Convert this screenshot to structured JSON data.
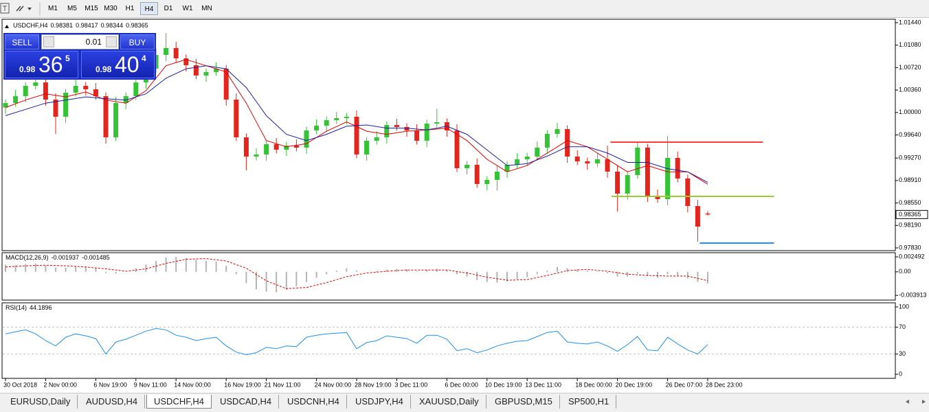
{
  "toolbar": {
    "timeframes": [
      "M1",
      "M5",
      "M15",
      "M30",
      "H1",
      "H4",
      "D1",
      "W1",
      "MN"
    ],
    "active": 5
  },
  "trade_panel": {
    "sell": "SELL",
    "buy": "BUY",
    "lot": "0.01",
    "bid": {
      "big": "0.98",
      "main": "36",
      "pip": "5"
    },
    "ask": {
      "big": "0.98",
      "main": "40",
      "pip": "4"
    }
  },
  "tabs": {
    "items": [
      "EURUSD,Daily",
      "AUDUSD,H4",
      "USDCHF,H4",
      "USDCAD,H4",
      "USDCNH,H4",
      "USDJPY,H4",
      "XAUUSD,Daily",
      "GBPUSD,M15",
      "SP500,H1"
    ],
    "active": 2
  },
  "chart_data": [
    {
      "type": "candlestick",
      "title": "USDCHF,H4",
      "categories": [
        "30 Oct 2018",
        null,
        null,
        null,
        "2 Nov 00:00",
        null,
        null,
        null,
        null,
        "6 Nov 19:00",
        null,
        null,
        null,
        "9 Nov 11:00",
        null,
        null,
        null,
        "14 Nov 00:00",
        null,
        null,
        null,
        null,
        "16 Nov 19:00",
        null,
        null,
        null,
        "21 Nov 11:00",
        null,
        null,
        null,
        null,
        "24 Nov 00:00",
        null,
        null,
        null,
        "28 Nov 19:00",
        null,
        null,
        null,
        "3 Dec 11:00",
        null,
        null,
        null,
        null,
        "6 Dec 00:00",
        null,
        null,
        null,
        "10 Dec 19:00",
        null,
        null,
        null,
        "13 Dec 11:00",
        null,
        null,
        null,
        null,
        "18 Dec 00:00",
        null,
        null,
        null,
        "20 Dec 19:00",
        null,
        null,
        null,
        null,
        "26 Dec 07:00",
        null,
        null,
        null,
        "28 Dec 23:00"
      ],
      "open": [
        1.0008,
        1.00152,
        1.00262,
        1.00427,
        1.00482,
        1.00207,
        0.99932,
        1.00317,
        1.00427,
        1.00372,
        1.00262,
        0.99602,
        1.00152,
        1.00262,
        1.00482,
        1.00703,
        1.00923,
        1.01033,
        1.00868,
        1.00758,
        1.00593,
        1.00648,
        1.00703,
        1.00207,
        0.99602,
        0.99294,
        0.99327,
        0.99492,
        0.99404,
        0.9947,
        0.99437,
        0.99712,
        0.99789,
        0.99877,
        0.9991,
        0.99932,
        0.99327,
        0.99547,
        0.99602,
        0.998,
        0.99767,
        0.99712,
        0.99547,
        0.99822,
        0.99844,
        0.99712,
        0.99107,
        0.99162,
        0.98854,
        0.9892,
        0.99052,
        0.99162,
        0.9925,
        0.99294,
        0.99437,
        0.99657,
        0.99734,
        0.99294,
        0.99217,
        0.99184,
        0.9925,
        0.99052,
        0.987,
        0.98997,
        0.99437,
        0.98667,
        0.98612,
        0.99272,
        0.98942,
        0.98501,
        0.98381
      ],
      "high": [
        1.00212,
        1.00362,
        1.00487,
        1.00582,
        1.00542,
        1.00307,
        1.00377,
        1.00527,
        1.00487,
        1.00472,
        1.00322,
        1.00252,
        1.00322,
        1.00582,
        1.00763,
        1.01023,
        1.01275,
        1.01133,
        1.00928,
        1.00858,
        1.00708,
        1.00803,
        1.00763,
        1.00307,
        0.99662,
        0.99427,
        0.99552,
        0.99592,
        0.9953,
        0.9957,
        0.99772,
        0.99889,
        0.99937,
        1.0001,
        0.99992,
        1.00032,
        0.99607,
        0.99702,
        0.9986,
        0.999,
        0.99827,
        0.99812,
        0.99882,
        1.0006,
        0.99904,
        0.99812,
        0.99222,
        0.99262,
        0.9898,
        0.99152,
        0.99222,
        0.9935,
        0.99354,
        0.99537,
        0.99717,
        0.99834,
        0.99794,
        0.99394,
        0.99277,
        0.9935,
        0.9947,
        0.99152,
        0.99057,
        0.99537,
        0.99497,
        0.98767,
        0.99624,
        0.99372,
        0.99002,
        0.98601,
        0.98417
      ],
      "low": [
        0.9998,
        1.00092,
        1.00162,
        1.00367,
        1.00107,
        0.99657,
        0.99832,
        1.00257,
        1.00272,
        1.00202,
        0.99502,
        0.99542,
        1.00052,
        1.00202,
        1.00382,
        1.00643,
        1.00823,
        1.00808,
        1.00658,
        1.00533,
        1.00493,
        1.00588,
        1.00107,
        0.99542,
        0.99074,
        0.99234,
        0.99227,
        0.99344,
        0.99304,
        0.99377,
        0.99337,
        0.99652,
        0.99689,
        0.99817,
        0.9981,
        0.99267,
        0.99227,
        0.99487,
        0.99502,
        0.99707,
        0.99612,
        0.99487,
        0.99447,
        0.99762,
        0.99612,
        0.99047,
        0.99007,
        0.98794,
        0.98754,
        0.9875,
        0.98952,
        0.99102,
        0.9915,
        0.99234,
        0.99337,
        0.99597,
        0.99194,
        0.99157,
        0.99084,
        0.99124,
        0.98952,
        0.98413,
        0.986,
        0.98937,
        0.98567,
        0.98552,
        0.98512,
        0.98882,
        0.98401,
        0.97929,
        0.98344
      ],
      "close": [
        1.00152,
        1.00262,
        1.00427,
        1.00482,
        1.00207,
        0.99932,
        1.00317,
        1.00427,
        1.00372,
        1.00262,
        0.99602,
        1.00152,
        1.00262,
        1.00482,
        1.00703,
        1.00923,
        1.01033,
        1.00868,
        1.00758,
        1.00593,
        1.00648,
        1.00703,
        1.00207,
        0.99602,
        0.99294,
        0.99327,
        0.99492,
        0.99404,
        0.9947,
        0.99437,
        0.99712,
        0.99789,
        0.99877,
        0.9991,
        0.99932,
        0.99327,
        0.99547,
        0.99602,
        0.998,
        0.99767,
        0.99712,
        0.99547,
        0.99822,
        0.99844,
        0.99712,
        0.99107,
        0.99162,
        0.98854,
        0.9892,
        0.99052,
        0.99162,
        0.9925,
        0.99294,
        0.99437,
        0.99657,
        0.99734,
        0.99294,
        0.99217,
        0.99184,
        0.9925,
        0.99052,
        0.987,
        0.98997,
        0.99437,
        0.98667,
        0.98612,
        0.99272,
        0.98942,
        0.98501,
        0.98171,
        0.98365
      ],
      "up_color": "#36c236",
      "down_color": "#e3261d",
      "lines": [
        {
          "color": "#e00000",
          "values": [
            1.0008,
            1.002,
            1.003,
            1.0025,
            1.0033,
            1.002,
            1.0015,
            1.0035,
            1.0075,
            1.0085,
            1.0075,
            1.0065,
            1.0015,
            0.9955,
            0.9945,
            0.995,
            0.997,
            0.9985,
            0.997,
            0.9965,
            0.997,
            0.9972,
            0.9975,
            0.9955,
            0.9925,
            0.9905,
            0.9915,
            0.9935,
            0.9955,
            0.9945,
            0.9925,
            0.9905,
            0.9915,
            0.9905,
            0.9905,
            0.9885
          ]
        },
        {
          "color": "#1c1ca0",
          "values": [
            0.9995,
            1.0005,
            1.0015,
            1.002,
            1.0025,
            1.0022,
            1.002,
            1.003,
            1.0055,
            1.007,
            1.0075,
            1.007,
            1.004,
            0.9995,
            0.9965,
            0.9955,
            0.9965,
            0.9978,
            0.998,
            0.9975,
            0.9975,
            0.9972,
            0.9978,
            0.9965,
            0.994,
            0.9915,
            0.9918,
            0.993,
            0.9945,
            0.9945,
            0.9935,
            0.992,
            0.992,
            0.991,
            0.9905,
            0.9888
          ]
        }
      ],
      "hlines": [
        {
          "value": 0.99525,
          "color": "#ff3a3a",
          "from": 60.3,
          "to": 75.5
        },
        {
          "value": 0.98655,
          "color": "#9acd32",
          "from": 60.4,
          "to": 76.6
        },
        {
          "value": 0.97907,
          "color": "#1e90ff",
          "from": 69.2,
          "to": 76.6
        }
      ],
      "ylim": [
        0.97786,
        1.01495
      ],
      "yticks": [
        {
          "value": 1.0144,
          "label": "1.01440"
        },
        {
          "value": 1.0108,
          "label": "1.01080"
        },
        {
          "value": 1.0072,
          "label": "1.00720"
        },
        {
          "value": 1.0036,
          "label": "1.00360"
        },
        {
          "value": 1.0,
          "label": "1.00000"
        },
        {
          "value": 0.9964,
          "label": "0.99640"
        },
        {
          "value": 0.9927,
          "label": "0.99270"
        },
        {
          "value": 0.9891,
          "label": "0.98910"
        },
        {
          "value": 0.9855,
          "label": "0.98550"
        },
        {
          "value": 0.9819,
          "label": "0.98190"
        },
        {
          "value": 0.9783,
          "label": "0.97830"
        }
      ]
    },
    {
      "type": "macd",
      "title": "MACD(12,26,9)",
      "color": "#b4b4b4",
      "values": [
        0.0012,
        0.0011,
        0.0013,
        0.0014,
        0.0011,
        0.0007,
        0.0007,
        0.0009,
        0.0009,
        0.0007,
        -0.0002,
        -0.0003,
        0.0,
        0.0006,
        0.0012,
        0.0018,
        0.0024,
        0.0025,
        0.0023,
        0.002,
        0.0018,
        0.0017,
        0.001,
        -0.0004,
        -0.0019,
        -0.0029,
        -0.0033,
        -0.0034,
        -0.003,
        -0.0024,
        -0.0017,
        -0.001,
        -0.0004,
        0.0002,
        0.0006,
        0.0002,
        0.0,
        0.0001,
        0.0004,
        0.0005,
        0.0004,
        0.0001,
        0.0003,
        0.0005,
        0.0003,
        -0.0004,
        -0.0008,
        -0.0014,
        -0.0017,
        -0.0018,
        -0.0016,
        -0.0012,
        -0.0009,
        -0.0004,
        0.0002,
        0.0008,
        0.0006,
        0.0004,
        0.0002,
        0.0001,
        -0.0002,
        -0.0008,
        -0.0008,
        -0.0003,
        -0.0007,
        -0.001,
        -0.0004,
        -0.0006,
        -0.0011,
        -0.0017,
        -0.001937
      ],
      "signal": {
        "color": "#e00000",
        "values": [
          0.0008,
          0.001,
          0.0011,
          0.001,
          0.0008,
          0.0005,
          0.0001,
          0.0005,
          0.0014,
          0.0021,
          0.0022,
          0.0018,
          0.0006,
          -0.0015,
          -0.0028,
          -0.0026,
          -0.0018,
          -0.0008,
          -0.0002,
          0.0001,
          0.0003,
          0.0003,
          0.0003,
          -0.0002,
          -0.0009,
          -0.0014,
          -0.0013,
          -0.0006,
          0.0002,
          0.0004,
          0.0001,
          -0.0004,
          -0.0006,
          -0.0007,
          -0.0007,
          -0.001485
        ]
      },
      "ylim": [
        -0.0047,
        0.00318
      ],
      "yticks": [
        0.002492,
        {
          "value": 0,
          "label": "0.00"
        },
        -0.003913
      ]
    },
    {
      "type": "line",
      "title": "RSI(14)",
      "color": "#1e8fe6",
      "values": [
        60,
        63,
        66,
        60,
        50,
        42,
        55,
        60,
        57,
        53,
        30,
        48,
        52,
        58,
        64,
        68,
        66,
        58,
        55,
        50,
        53,
        55,
        42,
        33,
        29,
        32,
        40,
        38,
        42,
        41,
        55,
        58,
        60,
        61,
        62,
        38,
        47,
        50,
        57,
        55,
        53,
        46,
        58,
        58,
        52,
        35,
        38,
        32,
        36,
        42,
        46,
        49,
        50,
        56,
        62,
        64,
        48,
        46,
        45,
        48,
        42,
        34,
        44,
        56,
        36,
        35,
        55,
        45,
        36,
        30,
        44.1896
      ],
      "ylim": [
        -6.1,
        106.1
      ],
      "yticks": [
        0,
        30,
        70,
        100
      ]
    }
  ]
}
